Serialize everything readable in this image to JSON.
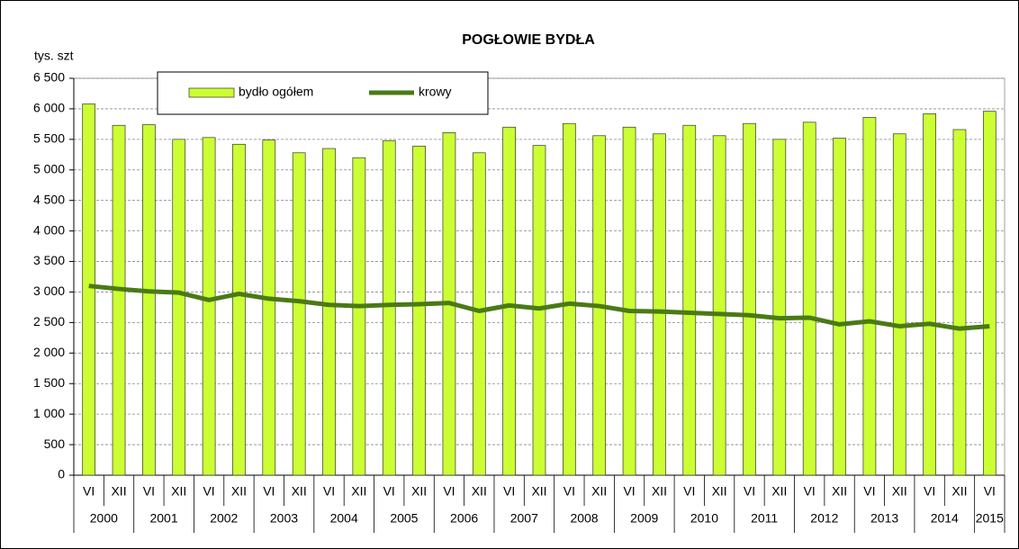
{
  "chart_data": {
    "type": "bar_line",
    "title": "POGŁOWIE BYDŁA",
    "y_axis_label": "tys. szt",
    "categories": [
      "VI",
      "XII",
      "VI",
      "XII",
      "VI",
      "XII",
      "VI",
      "XII",
      "VI",
      "XII",
      "VI",
      "XII",
      "VI",
      "XII",
      "VI",
      "XII",
      "VI",
      "XII",
      "VI",
      "XII",
      "VI",
      "XII",
      "VI",
      "XII",
      "VI",
      "XII",
      "VI",
      "XII",
      "VI",
      "XII",
      "VI"
    ],
    "year_groups": [
      "2000",
      "2001",
      "2002",
      "2003",
      "2004",
      "2005",
      "2006",
      "2007",
      "2008",
      "2009",
      "2010",
      "2011",
      "2012",
      "2013",
      "2014",
      "2015"
    ],
    "series": [
      {
        "name": "bydło ogółem",
        "type": "bar",
        "color": "#ccff33",
        "values": [
          6080,
          5730,
          5740,
          5500,
          5530,
          5420,
          5490,
          5280,
          5350,
          5200,
          5480,
          5390,
          5610,
          5280,
          5700,
          5400,
          5760,
          5560,
          5700,
          5590,
          5730,
          5560,
          5760,
          5500,
          5780,
          5520,
          5860,
          5590,
          5920,
          5660,
          5960
        ]
      },
      {
        "name": "krowy",
        "type": "line",
        "color": "#4a7a14",
        "values": [
          3100,
          3050,
          3010,
          2990,
          2870,
          2970,
          2890,
          2850,
          2790,
          2770,
          2790,
          2800,
          2820,
          2690,
          2780,
          2730,
          2810,
          2770,
          2690,
          2680,
          2660,
          2640,
          2620,
          2570,
          2580,
          2470,
          2520,
          2440,
          2480,
          2400,
          2440
        ]
      }
    ],
    "ylim": [
      0,
      6500
    ],
    "yticks": [
      0,
      500,
      {
        "value": 1000,
        "label": "1 000"
      },
      {
        "value": 1500,
        "label": "1 500"
      },
      {
        "value": 2000,
        "label": "2 000"
      },
      {
        "value": 2500,
        "label": "2 500"
      },
      {
        "value": 3000,
        "label": "3 000"
      },
      {
        "value": 3500,
        "label": "3 500"
      },
      {
        "value": 4000,
        "label": "4 000"
      },
      {
        "value": 4500,
        "label": "4 500"
      },
      {
        "value": 5000,
        "label": "5 000"
      },
      {
        "value": 5500,
        "label": "5 500"
      },
      {
        "value": 6000,
        "label": "6 000"
      },
      {
        "value": 6500,
        "label": "6 500"
      }
    ],
    "grid": true
  }
}
